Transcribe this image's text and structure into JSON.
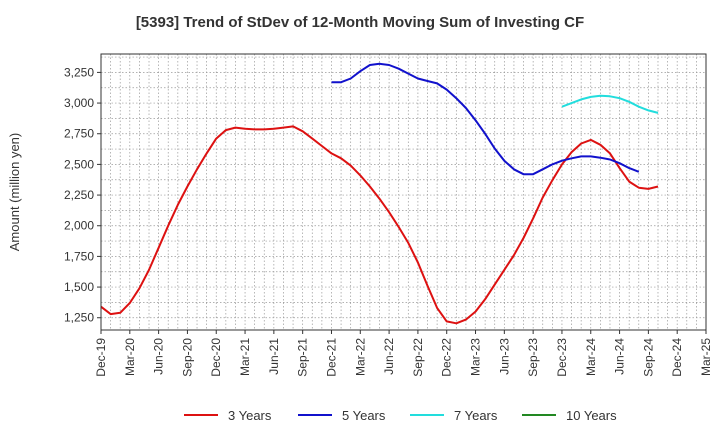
{
  "chart_data": {
    "type": "line",
    "title": "[5393]  Trend of StDev of 12-Month Moving Sum of Investing CF",
    "ylabel": "Amount (million yen)",
    "xlabel": "",
    "ylim": [
      1150,
      3400
    ],
    "yticks": [
      1250,
      1500,
      1750,
      2000,
      2250,
      2500,
      2750,
      3000,
      3250
    ],
    "ytick_labels": [
      "1,250",
      "1,500",
      "1,750",
      "2,000",
      "2,250",
      "2,500",
      "2,750",
      "3,000",
      "3,250"
    ],
    "xtick_labels": [
      "Dec-19",
      "Mar-20",
      "Jun-20",
      "Sep-20",
      "Dec-20",
      "Mar-21",
      "Jun-21",
      "Sep-21",
      "Dec-21",
      "Mar-22",
      "Jun-22",
      "Sep-22",
      "Dec-22",
      "Mar-23",
      "Jun-23",
      "Sep-23",
      "Dec-23",
      "Mar-24",
      "Jun-24",
      "Sep-24",
      "Dec-24",
      "Mar-25"
    ],
    "x_months": [
      "2019-12",
      "2020-01",
      "2020-02",
      "2020-03",
      "2020-04",
      "2020-05",
      "2020-06",
      "2020-07",
      "2020-08",
      "2020-09",
      "2020-10",
      "2020-11",
      "2020-12",
      "2021-01",
      "2021-02",
      "2021-03",
      "2021-04",
      "2021-05",
      "2021-06",
      "2021-07",
      "2021-08",
      "2021-09",
      "2021-10",
      "2021-11",
      "2021-12",
      "2022-01",
      "2022-02",
      "2022-03",
      "2022-04",
      "2022-05",
      "2022-06",
      "2022-07",
      "2022-08",
      "2022-09",
      "2022-10",
      "2022-11",
      "2022-12",
      "2023-01",
      "2023-02",
      "2023-03",
      "2023-04",
      "2023-05",
      "2023-06",
      "2023-07",
      "2023-08",
      "2023-09",
      "2023-10",
      "2023-11",
      "2023-12",
      "2024-01",
      "2024-02",
      "2024-03",
      "2024-04",
      "2024-05",
      "2024-06",
      "2024-07",
      "2024-08",
      "2024-09",
      "2024-10",
      "2024-11",
      "2024-12",
      "2025-01",
      "2025-02",
      "2025-03"
    ],
    "grid": true,
    "legend_position": "bottom",
    "series": [
      {
        "name": "3 Years",
        "color": "#dd1111",
        "start": "2019-12",
        "values": [
          1340,
          1280,
          1290,
          1370,
          1490,
          1640,
          1820,
          2000,
          2170,
          2320,
          2460,
          2590,
          2710,
          2780,
          2800,
          2790,
          2785,
          2785,
          2790,
          2800,
          2810,
          2770,
          2710,
          2650,
          2590,
          2550,
          2490,
          2410,
          2320,
          2220,
          2110,
          1990,
          1860,
          1700,
          1510,
          1330,
          1220,
          1205,
          1235,
          1300,
          1400,
          1520,
          1640,
          1760,
          1900,
          2060,
          2230,
          2370,
          2500,
          2600,
          2670,
          2700,
          2660,
          2590,
          2470,
          2360,
          2310,
          2300,
          2320
        ]
      },
      {
        "name": "5 Years",
        "color": "#1111cc",
        "start": "2021-12",
        "values": [
          3170,
          3170,
          3200,
          3260,
          3310,
          3320,
          3310,
          3280,
          3240,
          3200,
          3180,
          3160,
          3110,
          3040,
          2960,
          2860,
          2750,
          2630,
          2530,
          2460,
          2420,
          2420,
          2460,
          2500,
          2530,
          2550,
          2565,
          2565,
          2555,
          2540,
          2510,
          2470,
          2440
        ]
      },
      {
        "name": "7 Years",
        "color": "#22dddd",
        "start": "2023-12",
        "values": [
          2970,
          3000,
          3030,
          3050,
          3060,
          3055,
          3040,
          3010,
          2970,
          2940,
          2920
        ]
      },
      {
        "name": "10 Years",
        "color": "#228822",
        "start": "2024-12",
        "values": []
      }
    ]
  }
}
